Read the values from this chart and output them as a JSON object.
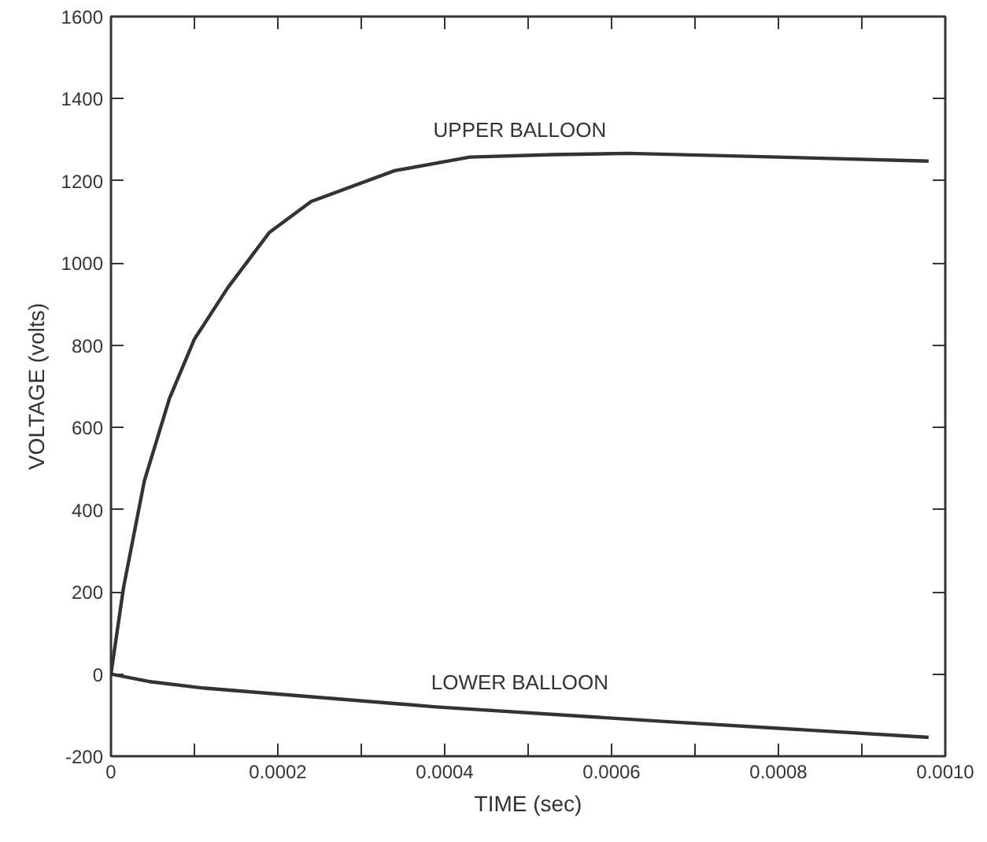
{
  "chart_data": {
    "type": "line",
    "xlabel": "TIME (sec)",
    "ylabel": "VOLTAGE (volts)",
    "xlim": [
      0,
      0.001
    ],
    "ylim": [
      -200,
      1600
    ],
    "xticks": [
      0,
      {
        "value": 0.0001,
        "label": null
      },
      {
        "value": 0.0002,
        "label": "0.0002"
      },
      {
        "value": 0.0003,
        "label": null
      },
      {
        "value": 0.0004,
        "label": "0.0004"
      },
      {
        "value": 0.0005,
        "label": null
      },
      {
        "value": 0.0006,
        "label": "0.0006"
      },
      {
        "value": 0.0007,
        "label": null
      },
      {
        "value": 0.0008,
        "label": "0.0008"
      },
      {
        "value": 0.0009,
        "label": null
      },
      {
        "value": 0.001,
        "label": "0.0010"
      }
    ],
    "yticks": [
      -200,
      0,
      200,
      400,
      600,
      800,
      1000,
      1200,
      1400,
      1600
    ],
    "grid": false,
    "marker": "none",
    "line_style": "solid",
    "series": [
      {
        "name": "UPPER BALLOON",
        "color": "#333333",
        "x": [
          0,
          1.5e-05,
          4e-05,
          7e-05,
          0.0001,
          0.00014,
          0.00019,
          0.00024,
          0.00034,
          0.00043,
          0.00053,
          0.00062,
          0.0008,
          0.00098
        ],
        "values": [
          0,
          210,
          470,
          670,
          815,
          940,
          1075,
          1150,
          1225,
          1258,
          1264,
          1267,
          1258,
          1248
        ]
      },
      {
        "name": "LOWER BALLOON",
        "color": "#333333",
        "x": [
          0,
          4.5e-05,
          0.00011,
          0.00039,
          0.00066,
          0.00098
        ],
        "values": [
          0,
          -18,
          -34,
          -80,
          -115,
          -154
        ]
      }
    ]
  }
}
